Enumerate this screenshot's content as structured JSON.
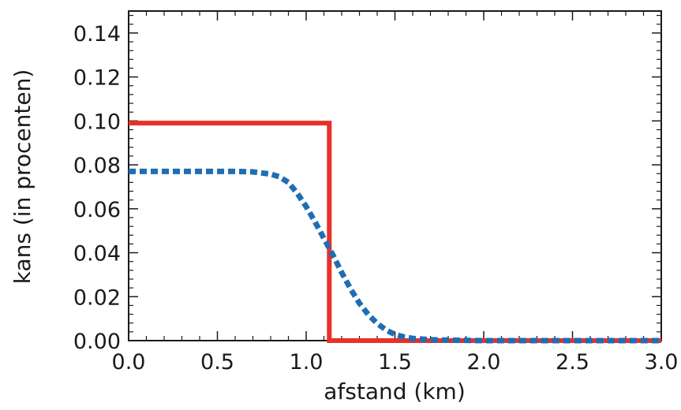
{
  "chart_data": {
    "type": "line",
    "title": "",
    "xlabel": "afstand (km)",
    "ylabel": "kans (in procenten)",
    "xlim": [
      0,
      3.0
    ],
    "ylim": [
      0,
      0.15
    ],
    "x_ticks": [
      {
        "value": 0.0,
        "label": "0.0"
      },
      {
        "value": 0.5,
        "label": "0.5"
      },
      {
        "value": 1.0,
        "label": "1.0"
      },
      {
        "value": 1.5,
        "label": "1.5"
      },
      {
        "value": 2.0,
        "label": "2.0"
      },
      {
        "value": 2.5,
        "label": "2.5"
      },
      {
        "value": 3.0,
        "label": "3.0"
      }
    ],
    "y_ticks": [
      {
        "value": 0.0,
        "label": "0.00"
      },
      {
        "value": 0.02,
        "label": "0.02"
      },
      {
        "value": 0.04,
        "label": "0.04"
      },
      {
        "value": 0.06,
        "label": "0.06"
      },
      {
        "value": 0.08,
        "label": "0.08"
      },
      {
        "value": 0.1,
        "label": "0.10"
      },
      {
        "value": 0.12,
        "label": "0.12"
      },
      {
        "value": 0.14,
        "label": "0.14"
      }
    ],
    "grid": false,
    "series": [
      {
        "style": "solid",
        "color": "#e8312a",
        "x": [
          0.0,
          1.13,
          1.13,
          3.0
        ],
        "y": [
          0.099,
          0.099,
          0.0,
          0.0
        ]
      },
      {
        "style": "dotted",
        "color": "#1f6db5",
        "x": [
          0.0,
          0.2,
          0.4,
          0.6,
          0.7,
          0.8,
          0.85,
          0.9,
          0.95,
          1.0,
          1.05,
          1.1,
          1.15,
          1.2,
          1.25,
          1.3,
          1.35,
          1.4,
          1.45,
          1.5,
          1.55,
          1.6,
          1.7,
          1.8,
          2.0,
          2.5,
          3.0
        ],
        "y": [
          0.077,
          0.077,
          0.077,
          0.077,
          0.0768,
          0.0758,
          0.0745,
          0.072,
          0.067,
          0.061,
          0.054,
          0.0465,
          0.039,
          0.031,
          0.0235,
          0.017,
          0.0118,
          0.0078,
          0.0048,
          0.0028,
          0.0017,
          0.001,
          0.0004,
          0.0002,
          0.0,
          0.0,
          0.0
        ]
      }
    ]
  }
}
